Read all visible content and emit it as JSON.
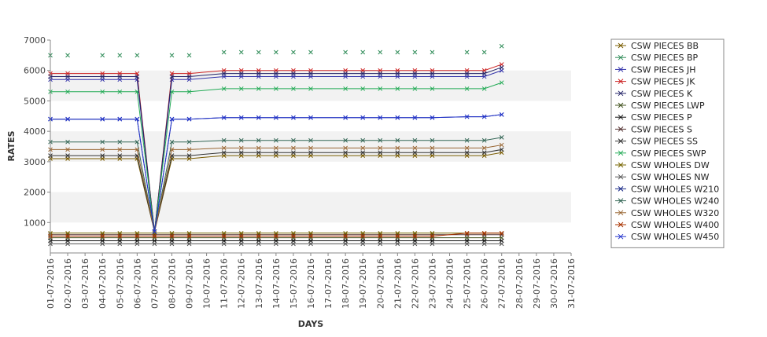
{
  "chart_data": {
    "type": "line",
    "xlabel": "DAYS",
    "ylabel": "RATES",
    "ylim": [
      0,
      7000
    ],
    "yticks": [
      1000,
      2000,
      3000,
      4000,
      5000,
      6000,
      7000
    ],
    "grid": "alternating horizontal bands",
    "legend_position": "right",
    "categories": [
      "01-07-2016",
      "02-07-2016",
      "03-07-2016",
      "04-07-2016",
      "05-07-2016",
      "06-07-2016",
      "07-07-2016",
      "08-07-2016",
      "09-07-2016",
      "10-07-2016",
      "11-07-2016",
      "12-07-2016",
      "13-07-2016",
      "14-07-2016",
      "15-07-2016",
      "16-07-2016",
      "17-07-2016",
      "18-07-2016",
      "19-07-2016",
      "20-07-2016",
      "21-07-2016",
      "22-07-2016",
      "23-07-2016",
      "24-07-2016",
      "25-07-2016",
      "26-07-2016",
      "27-07-2016",
      "28-07-2016",
      "29-07-2016",
      "30-07-2016",
      "31-07-2016"
    ],
    "series": [
      {
        "name": "CSW PIECES BB",
        "color": "#7a5c00",
        "marker": "x",
        "values": [
          3100,
          3100,
          null,
          3100,
          3100,
          3100,
          700,
          3100,
          3100,
          null,
          3200,
          3200,
          3200,
          3200,
          3200,
          3200,
          null,
          3200,
          3200,
          3200,
          3200,
          3200,
          3200,
          null,
          3200,
          3200,
          3300,
          null,
          null,
          null,
          null
        ]
      },
      {
        "name": "CSW PIECES BP",
        "color": "#2e8b57",
        "marker": "x",
        "values": [
          6500,
          6500,
          null,
          6500,
          6500,
          6500,
          700,
          6500,
          6500,
          null,
          6600,
          6600,
          6600,
          6600,
          6600,
          6600,
          null,
          6600,
          6600,
          6600,
          6600,
          6600,
          6600,
          null,
          6600,
          6600,
          6800,
          null,
          null,
          null,
          null
        ],
        "markers_only": true
      },
      {
        "name": "CSW PIECES JH",
        "color": "#3333aa",
        "marker": "x",
        "values": [
          5700,
          5700,
          null,
          5700,
          5700,
          5700,
          700,
          5700,
          5700,
          null,
          5800,
          5800,
          5800,
          5800,
          5800,
          5800,
          null,
          5800,
          5800,
          5800,
          5800,
          5800,
          5800,
          null,
          5800,
          5800,
          6000,
          null,
          null,
          null,
          null
        ]
      },
      {
        "name": "CSW PIECES JK",
        "color": "#cc2222",
        "marker": "x",
        "values": [
          5900,
          5900,
          null,
          5900,
          5900,
          5900,
          700,
          5900,
          5900,
          null,
          6000,
          6000,
          6000,
          6000,
          6000,
          6000,
          null,
          6000,
          6000,
          6000,
          6000,
          6000,
          6000,
          null,
          6000,
          6000,
          6200,
          null,
          null,
          null,
          null
        ]
      },
      {
        "name": "CSW PIECES K",
        "color": "#222266",
        "marker": "x",
        "values": [
          5800,
          5800,
          null,
          5800,
          5800,
          5800,
          700,
          5800,
          5800,
          null,
          5900,
          5900,
          5900,
          5900,
          5900,
          5900,
          null,
          5900,
          5900,
          5900,
          5900,
          5900,
          5900,
          null,
          5900,
          5900,
          6100,
          null,
          null,
          null,
          null
        ]
      },
      {
        "name": "CSW PIECES LWP",
        "color": "#445522",
        "marker": "x",
        "values": [
          500,
          500,
          null,
          500,
          500,
          500,
          500,
          500,
          500,
          null,
          500,
          500,
          500,
          500,
          500,
          500,
          null,
          500,
          500,
          500,
          500,
          500,
          500,
          null,
          500,
          500,
          500,
          null,
          null,
          null,
          null
        ]
      },
      {
        "name": "CSW PIECES P",
        "color": "#111111",
        "marker": "x",
        "values": [
          400,
          400,
          null,
          400,
          400,
          400,
          400,
          400,
          400,
          null,
          400,
          400,
          400,
          400,
          400,
          400,
          null,
          400,
          400,
          400,
          400,
          400,
          400,
          null,
          400,
          400,
          400,
          null,
          null,
          null,
          null
        ]
      },
      {
        "name": "CSW PIECES S",
        "color": "#553333",
        "marker": "x",
        "values": [
          600,
          600,
          null,
          600,
          600,
          600,
          600,
          600,
          600,
          null,
          600,
          600,
          600,
          600,
          600,
          600,
          null,
          600,
          600,
          600,
          600,
          600,
          600,
          null,
          600,
          600,
          600,
          null,
          null,
          null,
          null
        ]
      },
      {
        "name": "CSW PIECES SS",
        "color": "#333333",
        "marker": "x",
        "values": [
          3200,
          3200,
          null,
          3200,
          3200,
          3200,
          700,
          3200,
          3200,
          null,
          3300,
          3300,
          3300,
          3300,
          3300,
          3300,
          null,
          3300,
          3300,
          3300,
          3300,
          3300,
          3300,
          null,
          3300,
          3300,
          3400,
          null,
          null,
          null,
          null
        ]
      },
      {
        "name": "CSW PIECES SWP",
        "color": "#22aa55",
        "marker": "x",
        "values": [
          5300,
          5300,
          null,
          5300,
          5300,
          5300,
          700,
          5300,
          5300,
          null,
          5400,
          5400,
          5400,
          5400,
          5400,
          5400,
          null,
          5400,
          5400,
          5400,
          5400,
          5400,
          5400,
          null,
          5400,
          5400,
          5600,
          null,
          null,
          null,
          null
        ]
      },
      {
        "name": "CSW WHOLES DW",
        "color": "#776600",
        "marker": "x",
        "values": [
          650,
          650,
          null,
          650,
          650,
          650,
          650,
          650,
          650,
          null,
          650,
          650,
          650,
          650,
          650,
          650,
          null,
          650,
          650,
          650,
          650,
          650,
          650,
          null,
          650,
          650,
          650,
          null,
          null,
          null,
          null
        ]
      },
      {
        "name": "CSW WHOLES NW",
        "color": "#555555",
        "marker": "x",
        "values": [
          300,
          300,
          null,
          300,
          300,
          300,
          300,
          300,
          300,
          null,
          300,
          300,
          300,
          300,
          300,
          300,
          null,
          300,
          300,
          300,
          300,
          300,
          300,
          null,
          300,
          300,
          300,
          null,
          null,
          null,
          null
        ]
      },
      {
        "name": "CSW WHOLES W210",
        "color": "#1a2a88",
        "marker": "x",
        "values": [
          4400,
          4400,
          null,
          4400,
          4400,
          4400,
          700,
          4400,
          4400,
          null,
          4450,
          4450,
          4450,
          4450,
          4450,
          4450,
          null,
          4450,
          4450,
          4450,
          4450,
          4450,
          4450,
          null,
          4480,
          4480,
          4550,
          null,
          null,
          null,
          null
        ]
      },
      {
        "name": "CSW WHOLES W240",
        "color": "#336655",
        "marker": "x",
        "values": [
          3650,
          3650,
          null,
          3650,
          3650,
          3650,
          700,
          3650,
          3650,
          null,
          3700,
          3700,
          3700,
          3700,
          3700,
          3700,
          null,
          3700,
          3700,
          3700,
          3700,
          3700,
          3700,
          null,
          3700,
          3700,
          3800,
          null,
          null,
          null,
          null
        ]
      },
      {
        "name": "CSW WHOLES W320",
        "color": "#996633",
        "marker": "x",
        "values": [
          3400,
          3400,
          null,
          3400,
          3400,
          3400,
          700,
          3400,
          3400,
          null,
          3450,
          3450,
          3450,
          3450,
          3450,
          3450,
          null,
          3450,
          3450,
          3450,
          3450,
          3450,
          3450,
          null,
          3450,
          3450,
          3550,
          null,
          null,
          null,
          null
        ]
      },
      {
        "name": "CSW WHOLES W400",
        "color": "#aa3300",
        "marker": "x",
        "values": [
          550,
          550,
          null,
          550,
          550,
          550,
          550,
          550,
          550,
          null,
          550,
          550,
          550,
          550,
          550,
          550,
          null,
          550,
          550,
          550,
          550,
          550,
          550,
          null,
          650,
          650,
          650,
          null,
          null,
          null,
          null
        ]
      },
      {
        "name": "CSW WHOLES W450",
        "color": "#2233cc",
        "marker": "x",
        "values": [
          4400,
          4400,
          null,
          4400,
          4400,
          4400,
          700,
          4400,
          4400,
          null,
          4450,
          4450,
          4450,
          4450,
          4450,
          4450,
          null,
          4450,
          4450,
          4450,
          4450,
          4450,
          4450,
          null,
          4480,
          4480,
          4550,
          null,
          null,
          null,
          null
        ]
      }
    ]
  }
}
